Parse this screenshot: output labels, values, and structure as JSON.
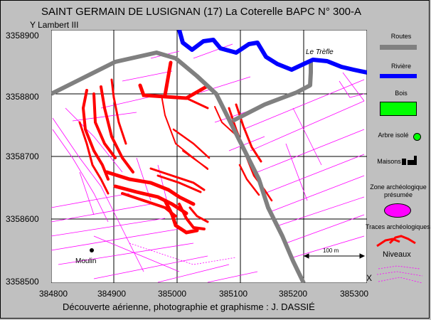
{
  "header": {
    "title": "SAINT GERMAIN DE LUSIGNAN  (17)  La Coterelle     BAPC N° 300-A",
    "axis_system": "Y  Lambert III"
  },
  "axes": {
    "y_ticks": [
      "3358900",
      "3358800",
      "3358700",
      "3358600",
      "3358500"
    ],
    "x_ticks": [
      "384800",
      "384900",
      "385000",
      "385100",
      "385200",
      "385300"
    ],
    "x_corner": "X"
  },
  "map": {
    "place_trefle": "Le Trèfle",
    "place_moulin": "Moulin",
    "scale_label": "100 m"
  },
  "legend": {
    "routes": "Routes",
    "riviere": "Rivière",
    "bois": "Bois",
    "arbre": "Arbre isolé",
    "maisons": "Maisons",
    "zone": "Zone archéologique présumée",
    "traces": "Traces archéologiques",
    "niveaux": "Niveaux",
    "colors": {
      "route": "#808080",
      "river": "#0000ff",
      "wood": "#00ff00",
      "zone": "#ff00ff",
      "traces": "#ff0000",
      "parcels": "#ff00ff"
    }
  },
  "footer": {
    "caption": "Découverte aérienne, photographie et graphisme : J. DASSIÉ"
  }
}
